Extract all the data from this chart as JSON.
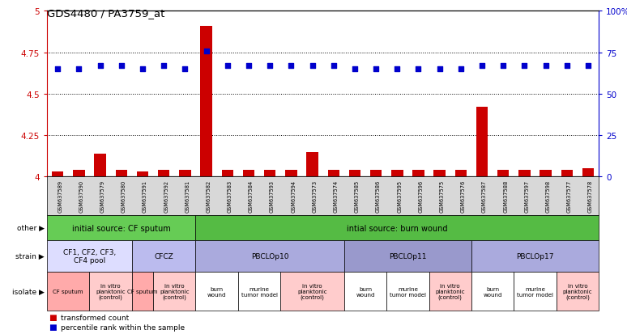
{
  "title": "GDS4480 / PA3759_at",
  "samples": [
    "GSM637589",
    "GSM637590",
    "GSM637579",
    "GSM637580",
    "GSM637591",
    "GSM637592",
    "GSM637581",
    "GSM637582",
    "GSM637583",
    "GSM637584",
    "GSM637593",
    "GSM637594",
    "GSM637573",
    "GSM637574",
    "GSM637585",
    "GSM637586",
    "GSM637595",
    "GSM637596",
    "GSM637575",
    "GSM637576",
    "GSM637587",
    "GSM637588",
    "GSM637597",
    "GSM637598",
    "GSM637577",
    "GSM637578"
  ],
  "bar_values": [
    4.03,
    4.04,
    4.14,
    4.04,
    4.03,
    4.04,
    4.04,
    4.91,
    4.04,
    4.04,
    4.04,
    4.04,
    4.15,
    4.04,
    4.04,
    4.04,
    4.04,
    4.04,
    4.04,
    4.04,
    4.42,
    4.04,
    4.04,
    4.04,
    4.04,
    4.05
  ],
  "dot_values": [
    4.65,
    4.65,
    4.67,
    4.67,
    4.65,
    4.67,
    4.65,
    4.76,
    4.67,
    4.67,
    4.67,
    4.67,
    4.67,
    4.67,
    4.65,
    4.65,
    4.65,
    4.65,
    4.65,
    4.65,
    4.67,
    4.67,
    4.67,
    4.67,
    4.67,
    4.67
  ],
  "ylim": [
    4.0,
    5.0
  ],
  "yticks": [
    4.0,
    4.25,
    4.5,
    4.75,
    5.0
  ],
  "ytick_labels": [
    "4",
    "4.25",
    "4.5",
    "4.75",
    "5"
  ],
  "y2ticks": [
    0,
    25,
    50,
    75,
    100
  ],
  "bar_color": "#cc0000",
  "dot_color": "#0000cc",
  "left_tick_color": "#cc0000",
  "right_tick_color": "#0000cc",
  "other_row": [
    {
      "label": "initial source: CF sputum",
      "start": 0,
      "end": 7,
      "color": "#66cc55"
    },
    {
      "label": "intial source: burn wound",
      "start": 7,
      "end": 26,
      "color": "#55bb44"
    }
  ],
  "strain_row": [
    {
      "label": "CF1, CF2, CF3,\nCF4 pool",
      "start": 0,
      "end": 4,
      "color": "#ddddff"
    },
    {
      "label": "CFCZ",
      "start": 4,
      "end": 7,
      "color": "#bbbbee"
    },
    {
      "label": "PBCLOp10",
      "start": 7,
      "end": 14,
      "color": "#aaaadd"
    },
    {
      "label": "PBCLOp11",
      "start": 14,
      "end": 20,
      "color": "#9999cc"
    },
    {
      "label": "PBCLOp17",
      "start": 20,
      "end": 26,
      "color": "#aaaadd"
    }
  ],
  "isolate_row": [
    {
      "label": "CF sputum",
      "start": 0,
      "end": 2,
      "color": "#ffaaaa"
    },
    {
      "label": "in vitro\nplanktonic\n(control)",
      "start": 2,
      "end": 4,
      "color": "#ffcccc"
    },
    {
      "label": "CF sputum",
      "start": 4,
      "end": 5,
      "color": "#ffaaaa"
    },
    {
      "label": "in vitro\nplanktonic\n(control)",
      "start": 5,
      "end": 7,
      "color": "#ffcccc"
    },
    {
      "label": "burn\nwound",
      "start": 7,
      "end": 9,
      "color": "#ffffff"
    },
    {
      "label": "murine\ntumor model",
      "start": 9,
      "end": 11,
      "color": "#ffffff"
    },
    {
      "label": "in vitro\nplanktonic\n(control)",
      "start": 11,
      "end": 14,
      "color": "#ffcccc"
    },
    {
      "label": "burn\nwound",
      "start": 14,
      "end": 16,
      "color": "#ffffff"
    },
    {
      "label": "murine\ntumor model",
      "start": 16,
      "end": 18,
      "color": "#ffffff"
    },
    {
      "label": "in vitro\nplanktonic\n(control)",
      "start": 18,
      "end": 20,
      "color": "#ffcccc"
    },
    {
      "label": "burn\nwound",
      "start": 20,
      "end": 22,
      "color": "#ffffff"
    },
    {
      "label": "murine\ntumor model",
      "start": 22,
      "end": 24,
      "color": "#ffffff"
    },
    {
      "label": "in vitro\nplanktonic\n(control)",
      "start": 24,
      "end": 26,
      "color": "#ffcccc"
    }
  ]
}
